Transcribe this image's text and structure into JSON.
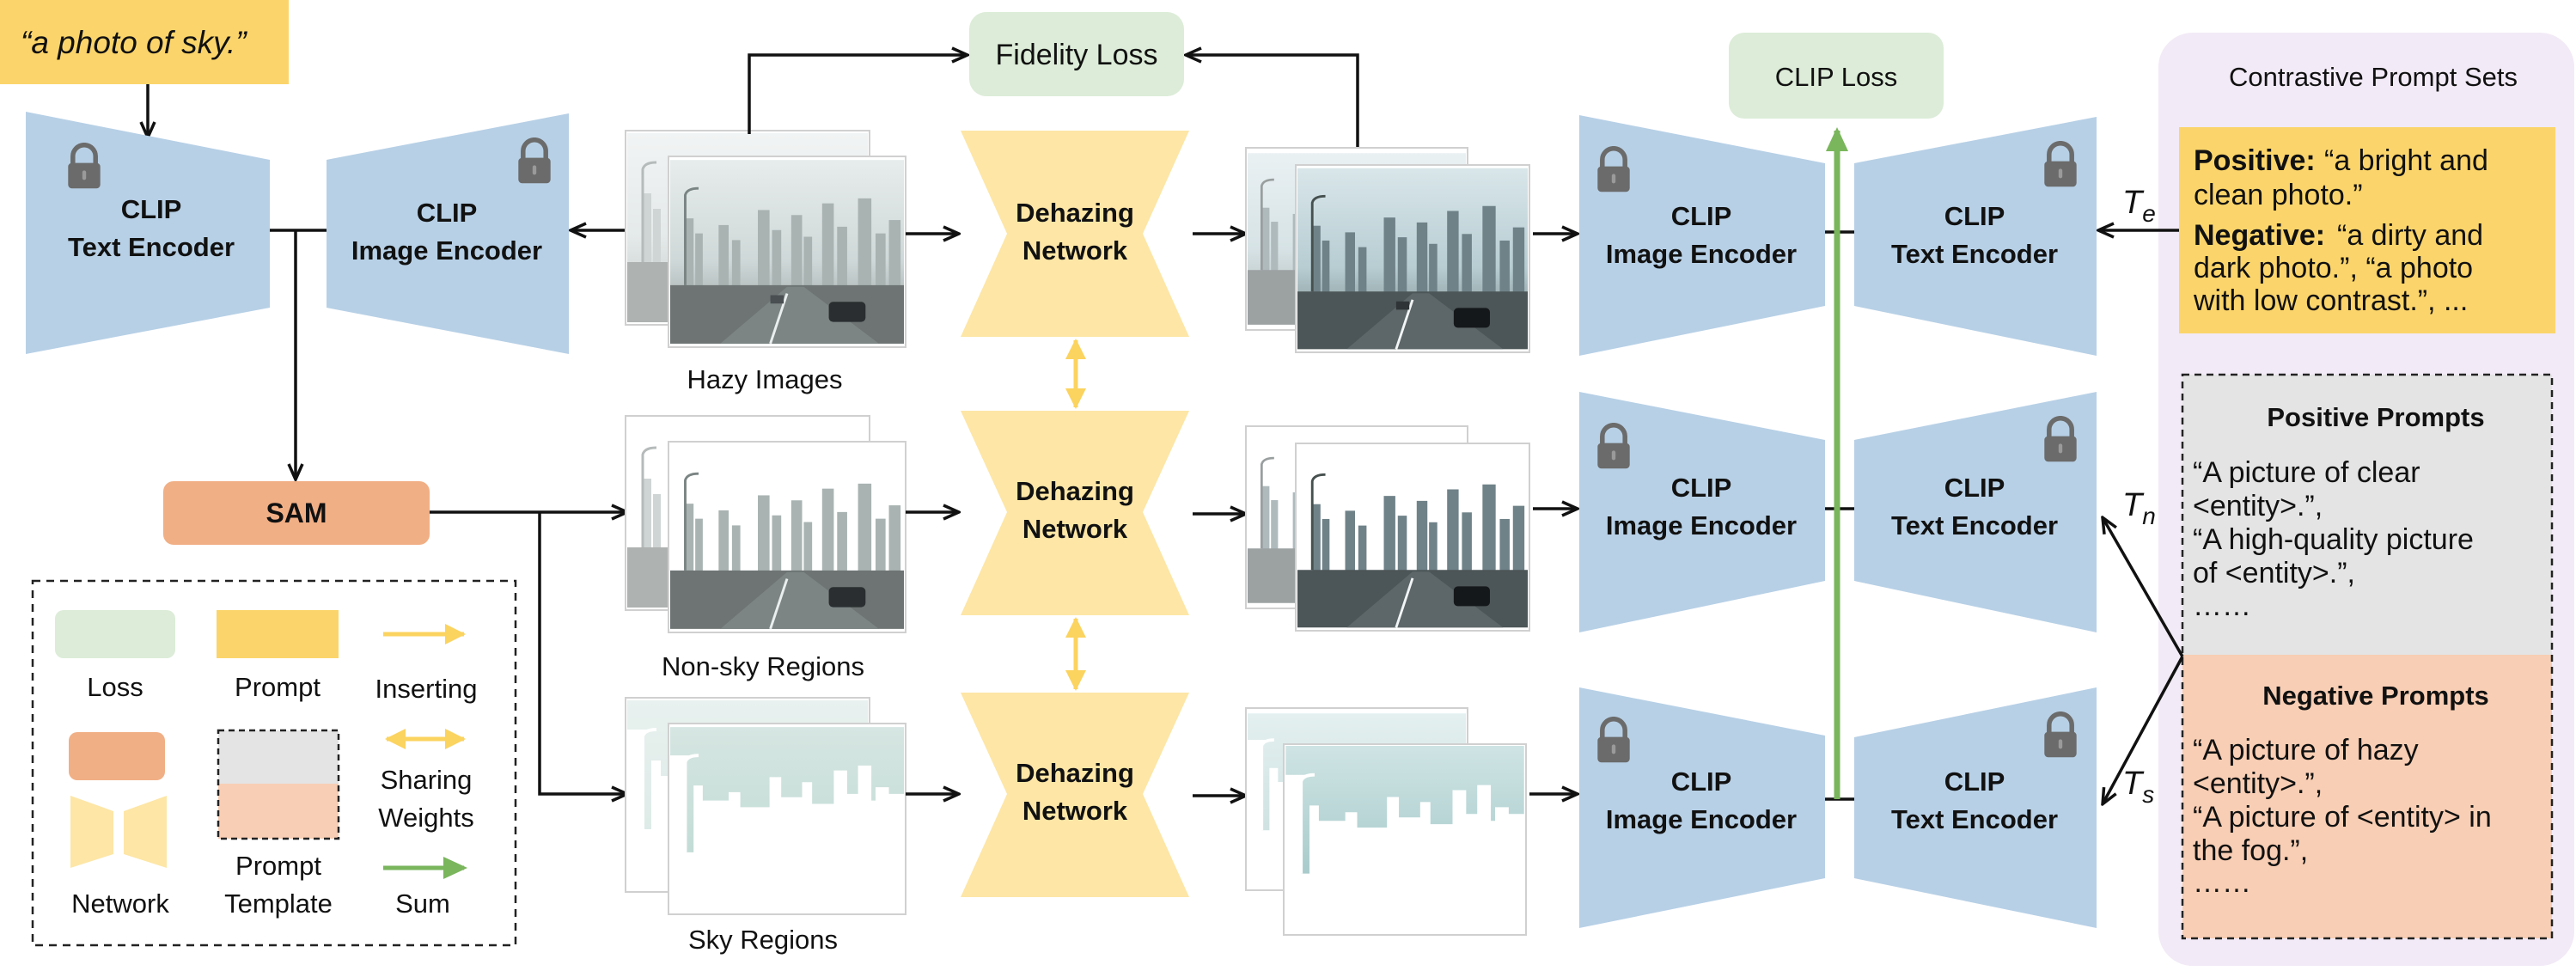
{
  "colors": {
    "encoder_blue": "#b7d0e6",
    "network_yellow": "#fde6a6",
    "prompt_yellow": "#fbd56b",
    "loss_green": "#dcecd8",
    "sam_orange": "#f1af85",
    "positive_gray": "#e4e4e4",
    "negative_peach": "#f8ceb4",
    "panel_lavender": "#f2eaf6",
    "sum_green": "#7ab65c",
    "insert_yellow": "#fbd35f",
    "arrow_black": "#111111"
  },
  "prompt_input": "“a photo of sky.”",
  "encoders": {
    "clip_label": "CLIP",
    "text_encoder": "Text Encoder",
    "image_encoder": "Image Encoder"
  },
  "sam_label": "SAM",
  "networks": {
    "line1": "Dehazing",
    "line2": "Network"
  },
  "losses": {
    "fidelity": "Fidelity Loss",
    "clip": "CLIP Loss"
  },
  "image_groups": {
    "hazy": "Hazy Images",
    "non_sky": "Non-sky Regions",
    "sky": "Sky Regions"
  },
  "text_feature_symbols": {
    "base": "T",
    "e": "e",
    "n": "n",
    "s": "s"
  },
  "contrastive_panel": {
    "title": "Contrastive Prompt Sets",
    "positive_label": "Positive:",
    "positive_line1": "“a bright and",
    "positive_line2": "clean photo.”",
    "negative_label": "Negative:",
    "negative_line1": "“a dirty and",
    "negative_line2": "dark photo.”, “a photo",
    "negative_line3": "with low contrast.”, ...",
    "positive_prompts_title": "Positive Prompts",
    "positive_prompts_lines": [
      "“A picture of clear",
      "<entity>.”,",
      "“A high-quality picture",
      "of <entity>.”,",
      "……"
    ],
    "negative_prompts_title": "Negative Prompts",
    "negative_prompts_lines": [
      "“A picture of hazy",
      "<entity>.”,",
      "“A picture of <entity> in",
      "the fog.”,",
      "……"
    ]
  },
  "legend": {
    "loss": "Loss",
    "prompt": "Prompt",
    "inserting": "Inserting",
    "sharing_line1": "Sharing",
    "sharing_line2": "Weights",
    "network": "Network",
    "template_line1": "Prompt",
    "template_line2": "Template",
    "sum": "Sum"
  }
}
